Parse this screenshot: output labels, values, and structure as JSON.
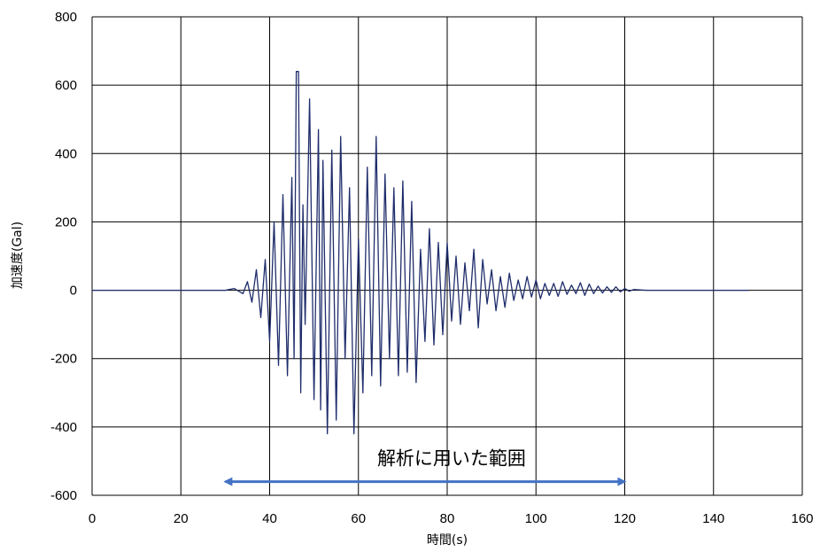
{
  "chart_data": {
    "type": "line",
    "title": "",
    "xlabel": "時間(s)",
    "ylabel": "加速度(Gal)",
    "xlim": [
      0,
      160
    ],
    "ylim": [
      -600,
      800
    ],
    "xticks": [
      0,
      20,
      40,
      60,
      80,
      100,
      120,
      140,
      160
    ],
    "yticks": [
      800,
      600,
      400,
      200,
      0,
      -200,
      -400,
      -600
    ],
    "xtick_labels": [
      "0",
      "20",
      "40",
      "60",
      "80",
      "100",
      "120",
      "140",
      "160"
    ],
    "ytick_labels": [
      "800",
      "600",
      "400",
      "200",
      "0",
      "-200",
      "-400",
      "-600"
    ],
    "grid": true,
    "line_color": "#1f2d6b",
    "arrow_color": "#4472c4",
    "series": [
      {
        "name": "",
        "x": [
          0,
          30,
          32,
          34,
          35,
          36,
          37,
          38,
          39,
          40,
          41,
          42,
          43,
          44,
          45,
          45.5,
          46,
          46.5,
          47,
          47.5,
          48,
          49,
          50,
          51,
          51.5,
          52,
          53,
          54,
          55,
          56,
          57,
          58,
          59,
          60,
          61,
          62,
          63,
          64,
          65,
          66,
          67,
          68,
          69,
          70,
          71,
          72,
          73,
          74,
          75,
          76,
          77,
          78,
          79,
          80,
          81,
          82,
          83,
          84,
          85,
          86,
          87,
          88,
          89,
          90,
          91,
          92,
          93,
          94,
          95,
          96,
          97,
          98,
          99,
          100,
          101,
          102,
          103,
          104,
          105,
          106,
          107,
          108,
          109,
          110,
          111,
          112,
          113,
          114,
          115,
          116,
          117,
          118,
          119,
          120,
          121,
          122,
          125,
          130,
          140,
          148
        ],
        "y": [
          0,
          0,
          5,
          -10,
          25,
          -35,
          60,
          -80,
          90,
          -150,
          200,
          -220,
          280,
          -250,
          330,
          -200,
          640,
          640,
          -300,
          250,
          -100,
          560,
          -320,
          470,
          -350,
          380,
          -420,
          410,
          -380,
          450,
          -200,
          300,
          -420,
          150,
          -300,
          360,
          -250,
          450,
          -280,
          340,
          -200,
          300,
          -250,
          320,
          -240,
          260,
          -270,
          120,
          -150,
          180,
          -160,
          140,
          -130,
          140,
          -90,
          100,
          -100,
          80,
          -60,
          120,
          -110,
          90,
          -40,
          60,
          -60,
          40,
          -50,
          50,
          -30,
          30,
          -25,
          40,
          -20,
          30,
          -25,
          20,
          -15,
          20,
          -18,
          25,
          -12,
          15,
          -10,
          22,
          -15,
          18,
          -10,
          12,
          -8,
          10,
          -6,
          10,
          -5,
          5,
          -3,
          2,
          0,
          0,
          0,
          0
        ]
      }
    ],
    "annotation": {
      "text": "解析に用いた範囲",
      "x_start": 30,
      "x_end": 120,
      "y": -560,
      "label_y": -490
    }
  }
}
